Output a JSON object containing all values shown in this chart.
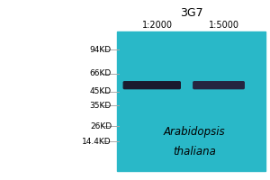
{
  "bg_color": "#ffffff",
  "blot_color": "#29b8c8",
  "title": "3G7",
  "lane_labels": [
    "1:2000",
    "1:5000"
  ],
  "marker_labels": [
    "94KD",
    "66KD",
    "45KD",
    "35KD",
    "26KD",
    "14.4KD"
  ],
  "band_color": "#1a1a2e",
  "band2_color": "#252540",
  "arabidopsis_line1": "Arabidopsis",
  "arabidopsis_line2": "thaliana",
  "font_size_title": 9,
  "font_size_lane": 7,
  "font_size_marker": 6.5,
  "font_size_species": 8.5
}
